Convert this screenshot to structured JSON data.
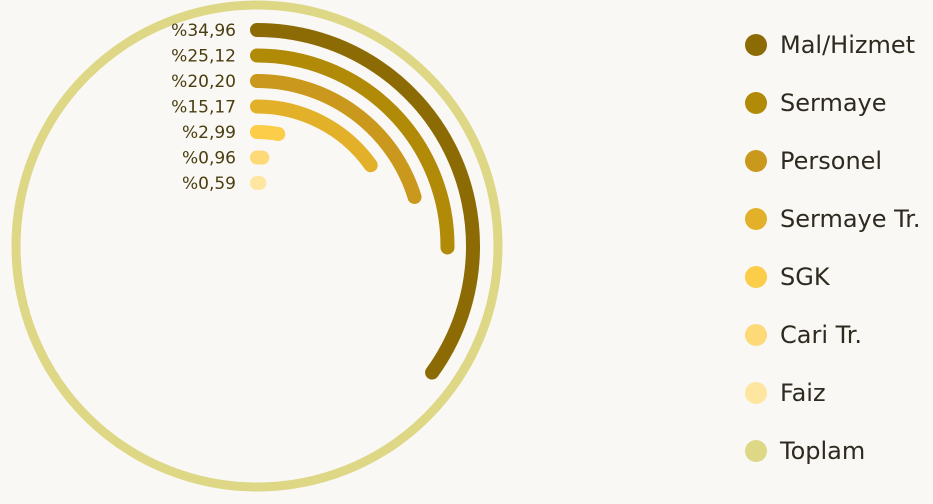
{
  "chart_data": {
    "type": "radial-bar",
    "series": [
      {
        "name": "Mal/Hizmet",
        "value": 34.96,
        "label": "%34,96",
        "color": "#8c6a04"
      },
      {
        "name": "Sermaye",
        "value": 25.12,
        "label": "%25,12",
        "color": "#b18a08"
      },
      {
        "name": "Personel",
        "value": 20.2,
        "label": "%20,20",
        "color": "#c9981c"
      },
      {
        "name": "Sermaye Tr.",
        "value": 15.17,
        "label": "%15,17",
        "color": "#e3b129"
      },
      {
        "name": "SGK",
        "value": 2.99,
        "label": "%2,99",
        "color": "#fbcd48"
      },
      {
        "name": "Cari Tr.",
        "value": 0.96,
        "label": "%0,96",
        "color": "#fdd978"
      },
      {
        "name": "Faiz",
        "value": 0.59,
        "label": "%0,59",
        "color": "#fee5a0"
      }
    ],
    "total": {
      "name": "Toplam",
      "value": 100,
      "color": "#ddd786"
    },
    "legend_position": "right"
  }
}
